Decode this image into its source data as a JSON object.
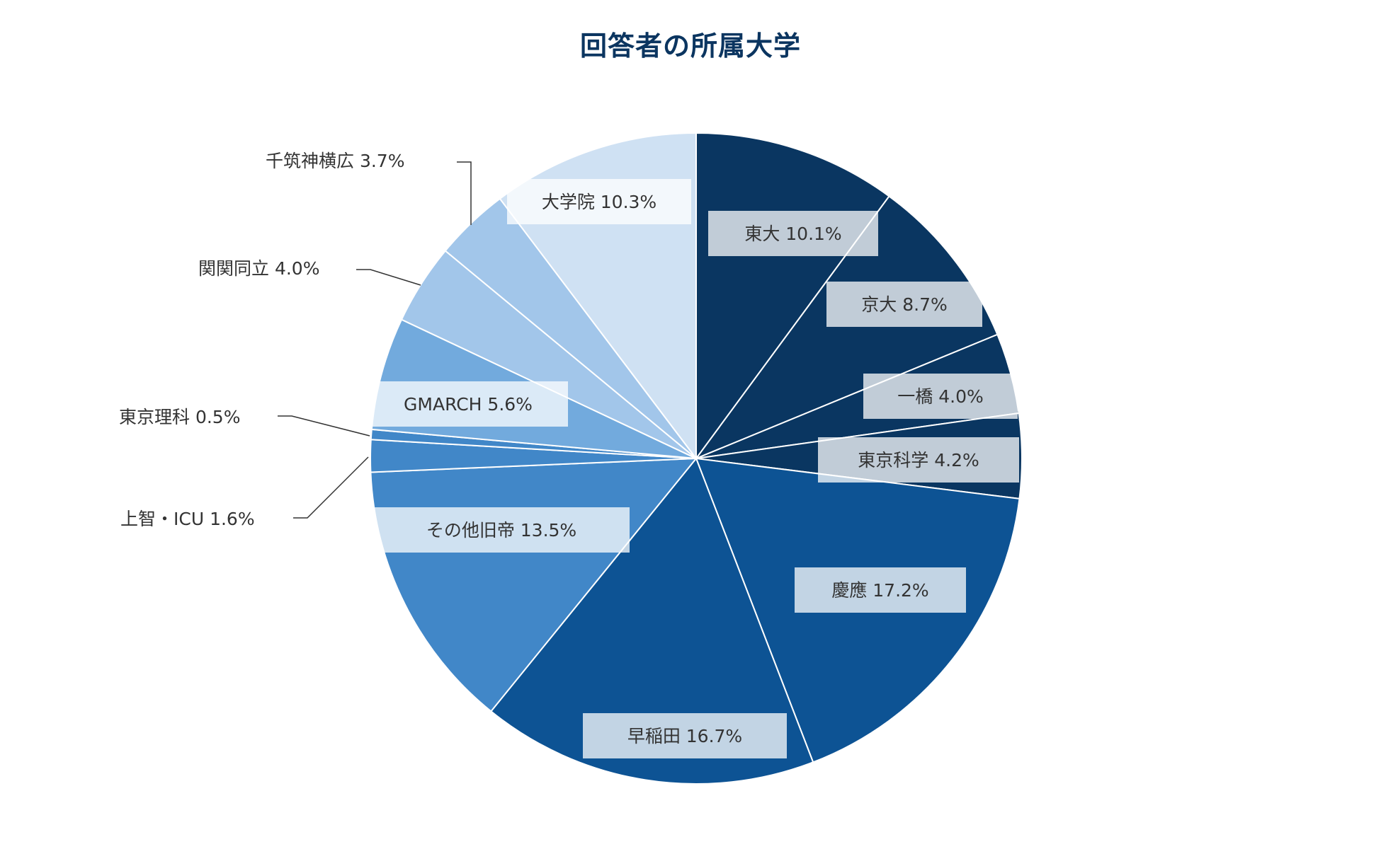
{
  "chart_data": {
    "type": "pie",
    "title": "回答者の所属大学",
    "slices": [
      {
        "name": "東大",
        "value": 10.1,
        "label": "東大 10.1%",
        "color": "#0a3661",
        "label_pos": "inside"
      },
      {
        "name": "京大",
        "value": 8.7,
        "label": "京大 8.7%",
        "color": "#0a3661",
        "label_pos": "inside"
      },
      {
        "name": "一橋",
        "value": 4.0,
        "label": "一橋 4.0%",
        "color": "#0a3661",
        "label_pos": "inside"
      },
      {
        "name": "東京科学",
        "value": 4.2,
        "label": "東京科学 4.2%",
        "color": "#0a3661",
        "label_pos": "inside"
      },
      {
        "name": "慶應",
        "value": 17.2,
        "label": "慶應 17.2%",
        "color": "#0d5394",
        "label_pos": "inside"
      },
      {
        "name": "早稲田",
        "value": 16.7,
        "label": "早稲田 16.7%",
        "color": "#0d5394",
        "label_pos": "inside"
      },
      {
        "name": "その他旧帝",
        "value": 13.5,
        "label": "その他旧帝 13.5%",
        "color": "#4187c8",
        "label_pos": "inside"
      },
      {
        "name": "上智・ICU",
        "value": 1.6,
        "label": "上智・ICU 1.6%",
        "color": "#4187c8",
        "label_pos": "outside"
      },
      {
        "name": "東京理科",
        "value": 0.5,
        "label": "東京理科 0.5%",
        "color": "#4187c8",
        "label_pos": "outside"
      },
      {
        "name": "GMARCH",
        "value": 5.6,
        "label": "GMARCH 5.6%",
        "color": "#72aadd",
        "label_pos": "inside"
      },
      {
        "name": "関関同立",
        "value": 4.0,
        "label": "関関同立 4.0%",
        "color": "#a2c6ea",
        "label_pos": "outside"
      },
      {
        "name": "千筑神横広",
        "value": 3.7,
        "label": "千筑神横広 3.7%",
        "color": "#a2c6ea",
        "label_pos": "outside"
      },
      {
        "name": "大学院",
        "value": 10.3,
        "label": "大学院 10.3%",
        "color": "#cfe1f3",
        "label_pos": "inside"
      }
    ],
    "start_angle": "12 o'clock",
    "direction": "clockwise",
    "legend": "none"
  }
}
